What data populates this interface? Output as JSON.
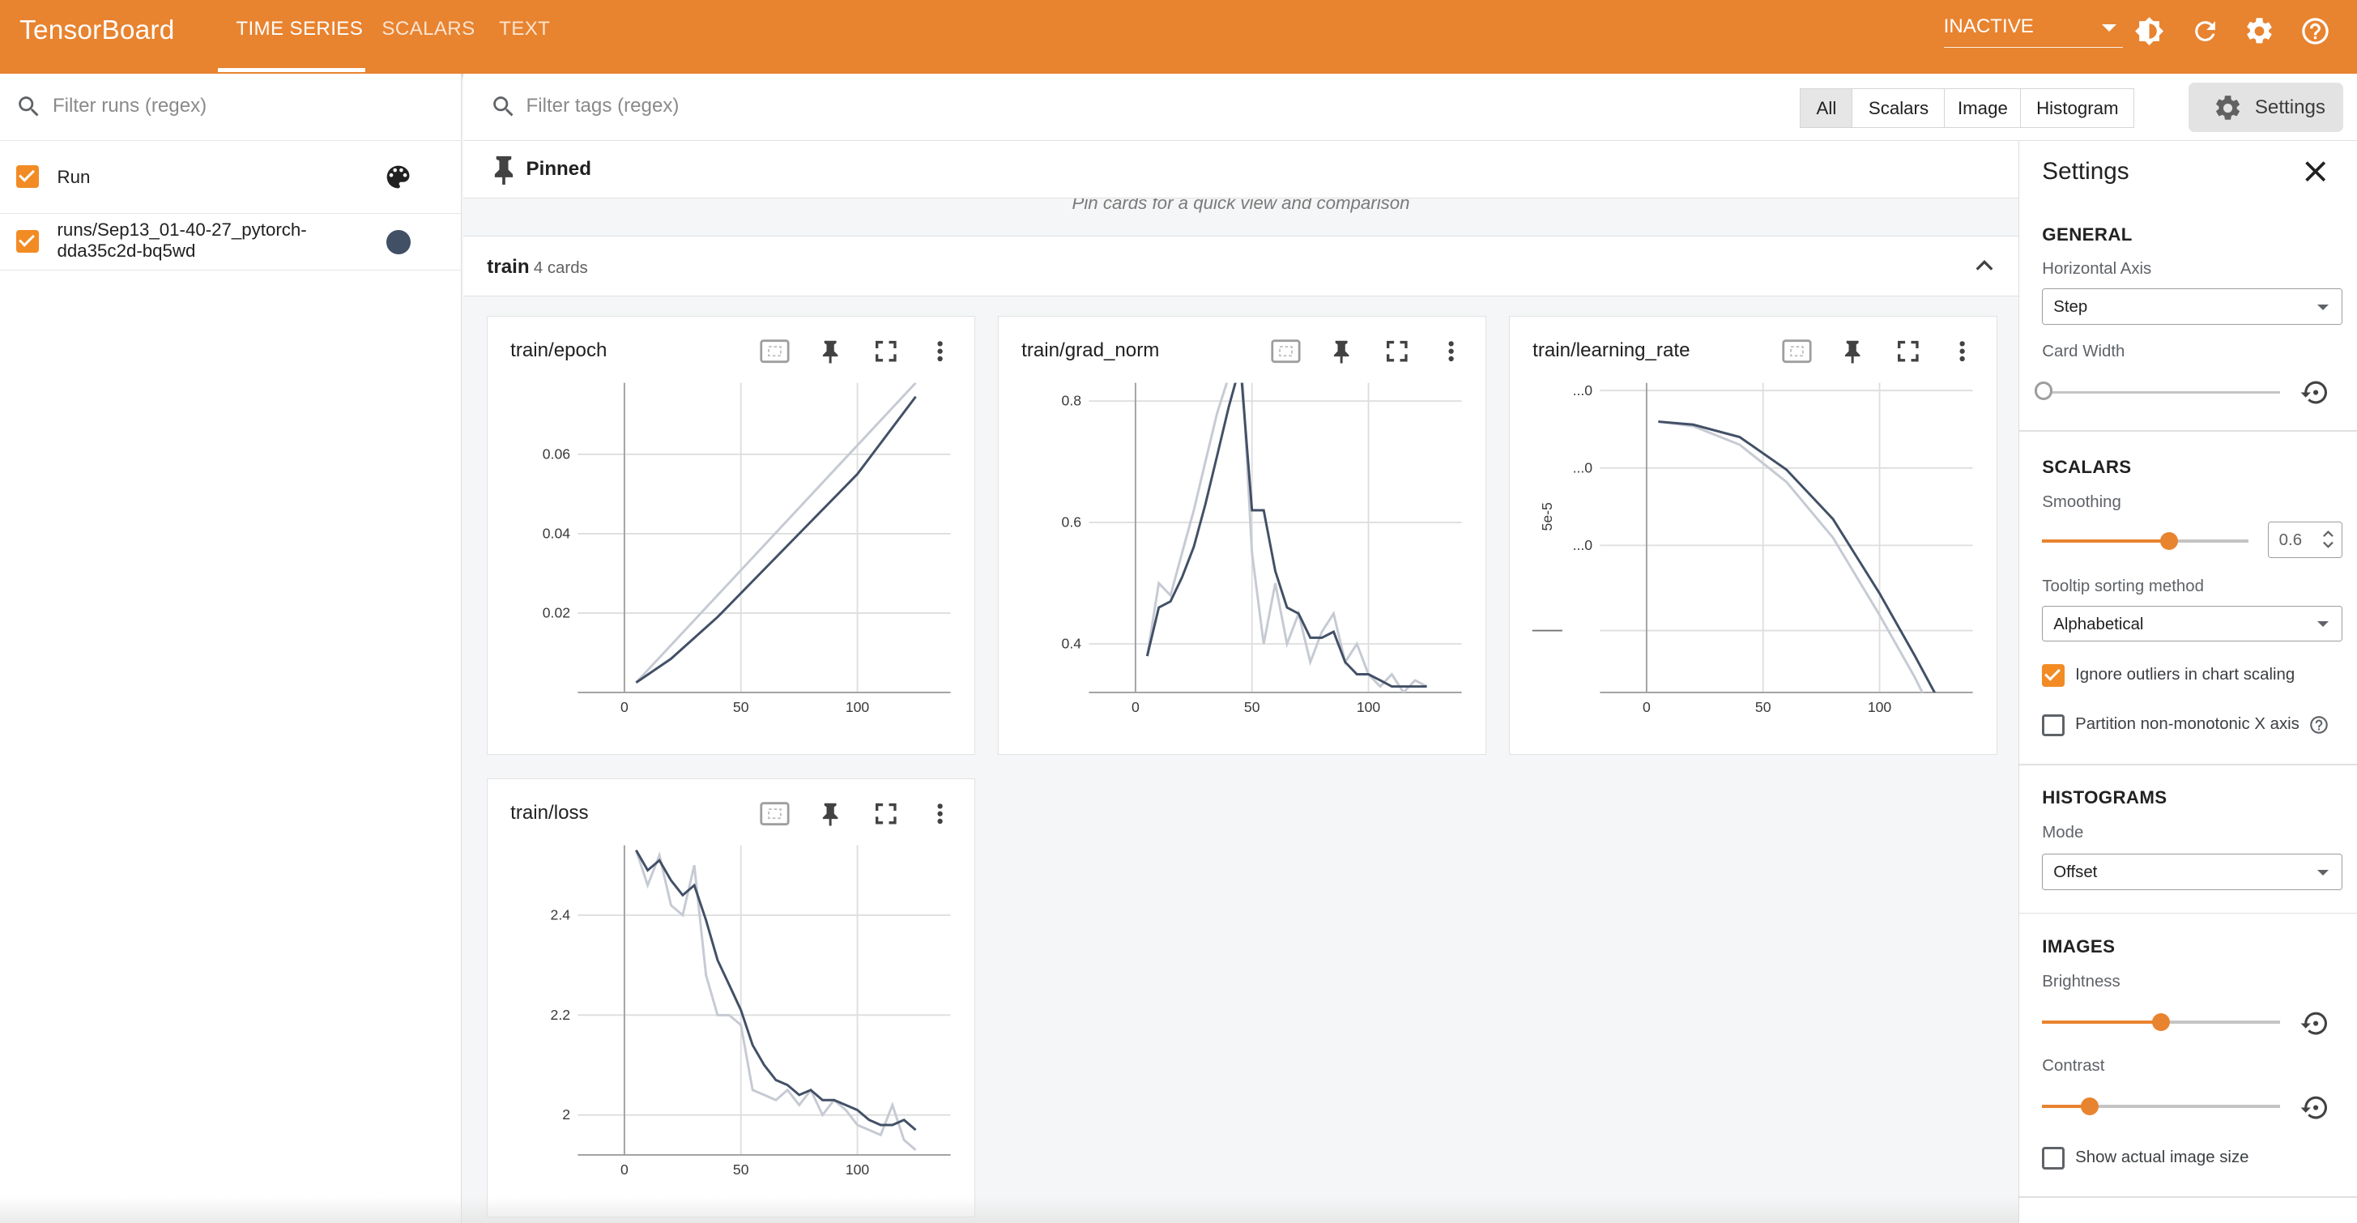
{
  "app": {
    "title": "TensorBoard"
  },
  "nav": {
    "tabs": [
      {
        "label": "TIME SERIES",
        "active": true
      },
      {
        "label": "SCALARS",
        "active": false
      },
      {
        "label": "TEXT",
        "active": false
      }
    ],
    "status_select": "INACTIVE",
    "icons": [
      "brightness-icon",
      "refresh-icon",
      "settings-gear-icon",
      "help-icon"
    ]
  },
  "runs": {
    "filter_placeholder": "Filter runs (regex)",
    "header_label": "Run",
    "items": [
      {
        "label": "runs/Sep13_01-40-27_pytorch-dda35c2d-bq5wd",
        "color": "#425066",
        "checked": true
      }
    ]
  },
  "tags": {
    "filter_placeholder": "Filter tags (regex)",
    "types": [
      "All",
      "Scalars",
      "Image",
      "Histogram"
    ],
    "active_type": "All",
    "settings_button": "Settings"
  },
  "pinned": {
    "label": "Pinned",
    "hint": "Pin cards for a quick view and comparison"
  },
  "group": {
    "name": "train",
    "count": "4 cards"
  },
  "colors": {
    "accent": "#e8832f",
    "series_smoothed": "#425066",
    "series_raw": "#c6cad3",
    "checkbox": "#f28b24"
  },
  "cards": [
    {
      "title": "train/epoch",
      "chart_index": 0
    },
    {
      "title": "train/grad_norm",
      "chart_index": 1
    },
    {
      "title": "train/learning_rate",
      "chart_index": 2
    },
    {
      "title": "train/loss",
      "chart_index": 3
    }
  ],
  "chart_data": [
    {
      "type": "line",
      "title": "train/epoch",
      "xlim": [
        -20,
        140
      ],
      "ylim": [
        0,
        0.078
      ],
      "xticks": [
        0,
        50,
        100
      ],
      "yticks": [
        0.02,
        0.04,
        0.06
      ],
      "ytick_labels": [
        "0.02",
        "0.04",
        "0.06"
      ],
      "series": [
        {
          "role": "raw",
          "x": [
            5,
            125
          ],
          "y": [
            0.0025,
            0.078
          ]
        },
        {
          "role": "smoothed",
          "x": [
            5,
            20,
            40,
            60,
            80,
            100,
            125
          ],
          "y": [
            0.0025,
            0.0085,
            0.019,
            0.031,
            0.043,
            0.055,
            0.0745
          ]
        }
      ]
    },
    {
      "type": "line",
      "title": "train/grad_norm",
      "xlim": [
        -20,
        140
      ],
      "ylim": [
        0.32,
        0.83
      ],
      "xticks": [
        0,
        50,
        100
      ],
      "yticks": [
        0.4,
        0.6,
        0.8
      ],
      "ytick_labels": [
        "0.4",
        "0.6",
        "0.8"
      ],
      "series": [
        {
          "role": "raw",
          "x": [
            5,
            10,
            15,
            20,
            25,
            30,
            35,
            40,
            45,
            50,
            55,
            60,
            65,
            70,
            75,
            80,
            85,
            90,
            95,
            100,
            105,
            110,
            115,
            120,
            125
          ],
          "y": [
            0.38,
            0.5,
            0.48,
            0.55,
            0.62,
            0.7,
            0.78,
            0.84,
            0.9,
            0.55,
            0.4,
            0.5,
            0.4,
            0.45,
            0.37,
            0.42,
            0.45,
            0.37,
            0.4,
            0.35,
            0.33,
            0.35,
            0.32,
            0.34,
            0.33
          ]
        },
        {
          "role": "smoothed",
          "x": [
            5,
            10,
            15,
            20,
            25,
            30,
            35,
            40,
            45,
            50,
            55,
            60,
            65,
            70,
            75,
            80,
            85,
            90,
            95,
            100,
            105,
            110,
            115,
            120,
            125
          ],
          "y": [
            0.38,
            0.46,
            0.47,
            0.51,
            0.56,
            0.63,
            0.71,
            0.79,
            0.86,
            0.62,
            0.62,
            0.52,
            0.46,
            0.45,
            0.41,
            0.41,
            0.42,
            0.37,
            0.35,
            0.35,
            0.34,
            0.33,
            0.33,
            0.33,
            0.33
          ]
        }
      ]
    },
    {
      "type": "line",
      "title": "train/learning_rate",
      "xlim": [
        -20,
        140
      ],
      "ylim": [
        0,
        1
      ],
      "xticks": [
        0,
        50,
        100
      ],
      "yticks": [
        0.2,
        0.475,
        0.725,
        0.975
      ],
      "ytick_labels": [
        "",
        "...0",
        "...0",
        "...0"
      ],
      "ylabel": "5e-5",
      "series": [
        {
          "role": "raw",
          "x": [
            5,
            20,
            40,
            60,
            80,
            100,
            115,
            125
          ],
          "y": [
            0.875,
            0.86,
            0.8,
            0.68,
            0.5,
            0.25,
            0.05,
            -0.1
          ]
        },
        {
          "role": "smoothed",
          "x": [
            5,
            20,
            40,
            60,
            80,
            100,
            115,
            125
          ],
          "y": [
            0.875,
            0.865,
            0.825,
            0.72,
            0.56,
            0.32,
            0.12,
            -0.02
          ]
        }
      ]
    },
    {
      "type": "line",
      "title": "train/loss",
      "xlim": [
        -20,
        140
      ],
      "ylim": [
        1.92,
        2.54
      ],
      "xticks": [
        0,
        50,
        100
      ],
      "yticks": [
        2,
        2.2,
        2.4
      ],
      "ytick_labels": [
        "2",
        "2.2",
        "2.4"
      ],
      "series": [
        {
          "role": "raw",
          "x": [
            5,
            10,
            15,
            20,
            25,
            30,
            35,
            40,
            45,
            50,
            55,
            60,
            65,
            70,
            75,
            80,
            85,
            90,
            95,
            100,
            105,
            110,
            115,
            120,
            125
          ],
          "y": [
            2.53,
            2.46,
            2.52,
            2.42,
            2.4,
            2.5,
            2.28,
            2.2,
            2.2,
            2.18,
            2.05,
            2.04,
            2.03,
            2.05,
            2.02,
            2.05,
            2.0,
            2.03,
            2.01,
            1.98,
            1.97,
            1.96,
            2.02,
            1.95,
            1.93
          ]
        },
        {
          "role": "smoothed",
          "x": [
            5,
            10,
            15,
            20,
            25,
            30,
            35,
            40,
            45,
            50,
            55,
            60,
            65,
            70,
            75,
            80,
            85,
            90,
            95,
            100,
            105,
            110,
            115,
            120,
            125
          ],
          "y": [
            2.53,
            2.49,
            2.51,
            2.47,
            2.44,
            2.46,
            2.39,
            2.31,
            2.26,
            2.21,
            2.14,
            2.1,
            2.07,
            2.06,
            2.04,
            2.05,
            2.03,
            2.03,
            2.02,
            2.01,
            1.99,
            1.98,
            1.98,
            1.99,
            1.97
          ]
        }
      ]
    }
  ],
  "settings": {
    "title": "Settings",
    "general": {
      "heading": "GENERAL",
      "horizontal_axis_label": "Horizontal Axis",
      "horizontal_axis_value": "Step",
      "card_width_label": "Card Width",
      "card_width_value": 0
    },
    "scalars": {
      "heading": "SCALARS",
      "smoothing_label": "Smoothing",
      "smoothing_value": 0.6,
      "smoothing_text": "0.6",
      "tooltip_label": "Tooltip sorting method",
      "tooltip_value": "Alphabetical",
      "ignore_outliers_label": "Ignore outliers in chart scaling",
      "ignore_outliers_checked": true,
      "partition_label": "Partition non-monotonic X axis",
      "partition_checked": false
    },
    "histograms": {
      "heading": "HISTOGRAMS",
      "mode_label": "Mode",
      "mode_value": "Offset"
    },
    "images": {
      "heading": "IMAGES",
      "brightness_label": "Brightness",
      "brightness_value": 0.5,
      "contrast_label": "Contrast",
      "contrast_value": 0.2,
      "actual_size_label": "Show actual image size",
      "actual_size_checked": false
    }
  }
}
